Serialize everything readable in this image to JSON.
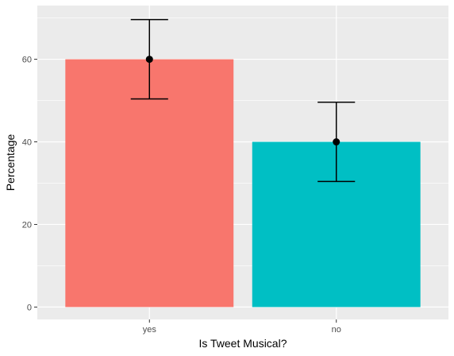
{
  "chart_data": {
    "type": "bar",
    "xlabel": "Is Tweet Musical?",
    "ylabel": "Percentage",
    "categories": [
      "yes",
      "no"
    ],
    "values": [
      60,
      40
    ],
    "error_bars": [
      {
        "low": 50.4,
        "high": 69.6
      },
      {
        "low": 30.4,
        "high": 49.6
      }
    ],
    "colors": [
      "#F8766D",
      "#00BFC4"
    ],
    "y_ticks": [
      0,
      20,
      40,
      60
    ],
    "ylim": [
      -3,
      73
    ],
    "grid": true,
    "legend": "none",
    "panel_background": "#EBEBEB",
    "grid_color": "#FFFFFF"
  }
}
